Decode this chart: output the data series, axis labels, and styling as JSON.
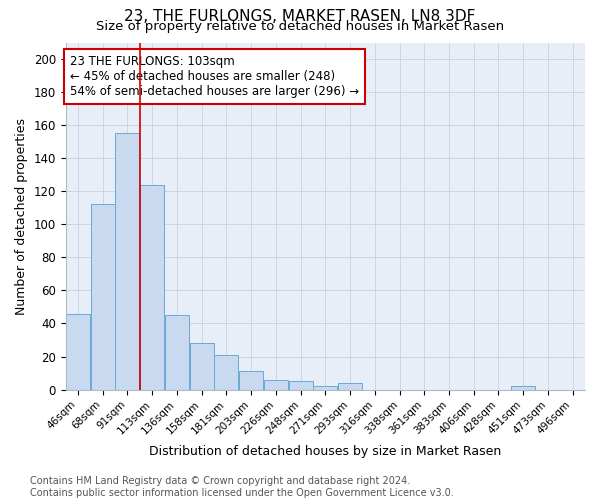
{
  "title": "23, THE FURLONGS, MARKET RASEN, LN8 3DF",
  "subtitle": "Size of property relative to detached houses in Market Rasen",
  "xlabel": "Distribution of detached houses by size in Market Rasen",
  "ylabel": "Number of detached properties",
  "categories": [
    "46sqm",
    "68sqm",
    "91sqm",
    "113sqm",
    "136sqm",
    "158sqm",
    "181sqm",
    "203sqm",
    "226sqm",
    "248sqm",
    "271sqm",
    "293sqm",
    "316sqm",
    "338sqm",
    "361sqm",
    "383sqm",
    "406sqm",
    "428sqm",
    "451sqm",
    "473sqm",
    "496sqm"
  ],
  "values": [
    46,
    112,
    155,
    124,
    45,
    28,
    21,
    11,
    6,
    5,
    2,
    4,
    0,
    0,
    0,
    0,
    0,
    0,
    2,
    0,
    0
  ],
  "bar_color": "#c8d9f0",
  "bar_edge_color": "#6aaad4",
  "vline_x": 2.5,
  "vline_color": "#cc0000",
  "annotation_text": "23 THE FURLONGS: 103sqm\n← 45% of detached houses are smaller (248)\n54% of semi-detached houses are larger (296) →",
  "annotation_box_color": "#ffffff",
  "annotation_box_edge": "#cc0000",
  "ylim": [
    0,
    210
  ],
  "yticks": [
    0,
    20,
    40,
    60,
    80,
    100,
    120,
    140,
    160,
    180,
    200
  ],
  "background_color": "#e8eef8",
  "footer_text": "Contains HM Land Registry data © Crown copyright and database right 2024.\nContains public sector information licensed under the Open Government Licence v3.0.",
  "title_fontsize": 11,
  "subtitle_fontsize": 9.5,
  "xlabel_fontsize": 9,
  "ylabel_fontsize": 9,
  "annotation_fontsize": 8.5,
  "footer_fontsize": 7
}
